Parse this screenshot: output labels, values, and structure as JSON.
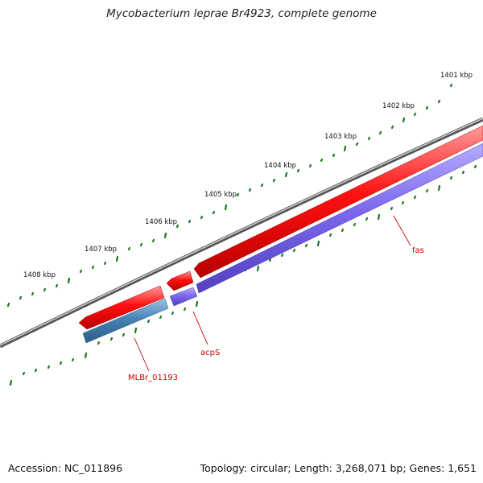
{
  "title": "Mycobacterium leprae Br4923, complete genome",
  "footer": {
    "accession": "Accession: NC_011896",
    "summary": "Topology: circular; Length: 3,268,071 bp; Genes: 1,651"
  },
  "scale_labels": [
    "1401 kbp",
    "1402 kbp",
    "1403 kbp",
    "1404 kbp",
    "1405 kbp",
    "1406 kbp",
    "1407 kbp",
    "1408 kbp"
  ],
  "genes": [
    {
      "name": "fas",
      "strand": "reverse",
      "color": "#ee0000"
    },
    {
      "name": "acpS",
      "strand": "reverse",
      "color": "#ee0000"
    },
    {
      "name": "MLBr_01193",
      "strand": "reverse",
      "color": "#ee0000"
    }
  ],
  "cds_features": [
    {
      "gene": "fas",
      "color": "#7b68ee"
    },
    {
      "gene": "acpS",
      "color": "#7b68ee"
    },
    {
      "gene": "MLBr_01193",
      "color": "#4682b4"
    }
  ],
  "colors": {
    "backbone": "#777777",
    "gene": "#ee0000",
    "cds": "#7b68ee",
    "cds_alt": "#4682b4",
    "ticks": "#1a7a1a",
    "label": "#cc0000"
  }
}
